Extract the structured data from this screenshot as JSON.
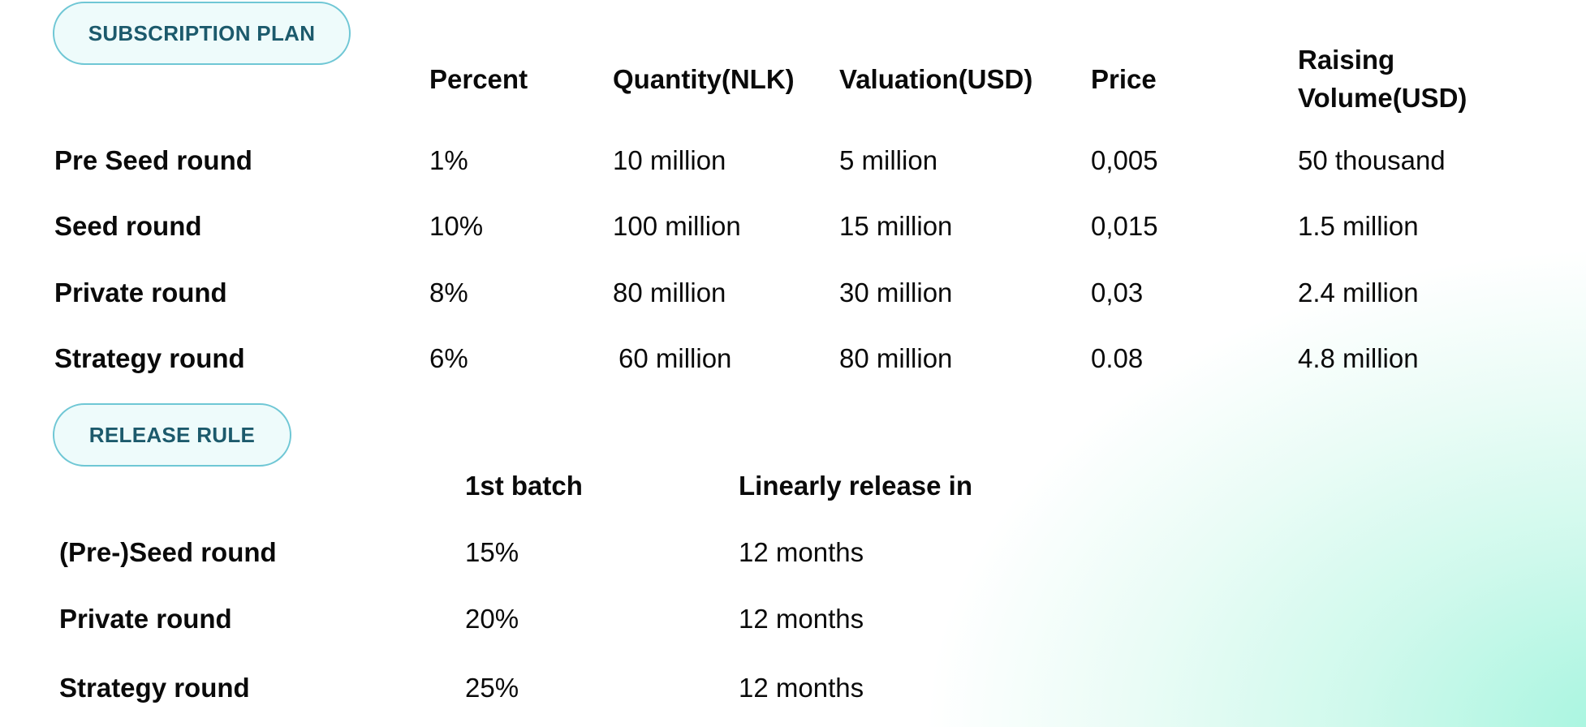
{
  "subscription": {
    "button_label": "SUBSCRIPTION PLAN",
    "headers": [
      "Percent",
      "Quantity(NLK)",
      "Valuation(USD)",
      "Price"
    ],
    "header_raising_line1": "Raising",
    "header_raising_line2": "Volume(USD)",
    "rows": [
      {
        "label": "Pre Seed round",
        "cells": [
          "1%",
          "10 million",
          "5 million",
          "0,005",
          "50 thousand"
        ]
      },
      {
        "label": "Seed round",
        "cells": [
          "10%",
          "100 million",
          "15 million",
          "0,015",
          "1.5 million"
        ]
      },
      {
        "label": "Private round",
        "cells": [
          "8%",
          "80 million",
          "30 million",
          "0,03",
          "2.4 million"
        ]
      },
      {
        "label": "Strategy round",
        "cells": [
          "6%",
          "60 million",
          "80 million",
          "0.08",
          "4.8 million"
        ]
      }
    ]
  },
  "release": {
    "button_label": "RELEASE RULE",
    "headers": [
      "1st batch",
      "Linearly release in"
    ],
    "rows": [
      {
        "label": "(Pre-)Seed round",
        "cells": [
          "15%",
          "12 months"
        ]
      },
      {
        "label": "Private round",
        "cells": [
          "20%",
          "12 months"
        ]
      },
      {
        "label": "Strategy round",
        "cells": [
          "25%",
          "12 months"
        ]
      }
    ]
  }
}
